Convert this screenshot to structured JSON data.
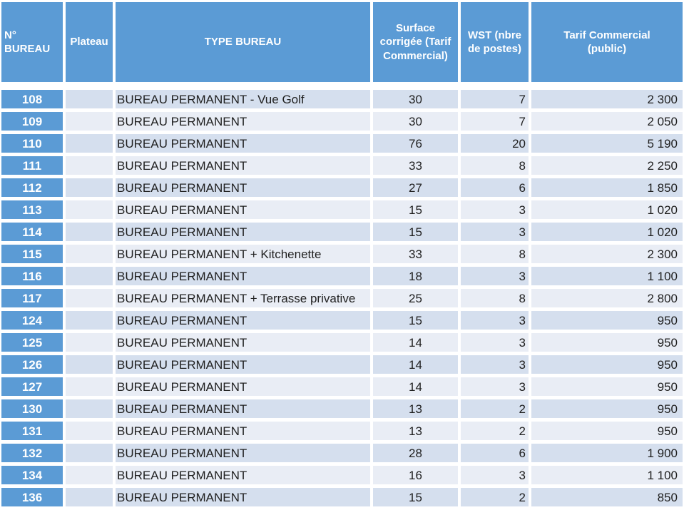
{
  "colors": {
    "blue": "#5B9BD5",
    "band_dark": "#D5DFEE",
    "band_light": "#E9EDF5",
    "text": "#1F1F1F"
  },
  "table": {
    "columns": [
      {
        "label": "N° BUREAU"
      },
      {
        "label": "Plateau"
      },
      {
        "label": "TYPE BUREAU"
      },
      {
        "label": "Surface corrigée (Tarif Commercial)"
      },
      {
        "label": "WST (nbre de postes)"
      },
      {
        "label": "Tarif Commercial (public)"
      }
    ],
    "rows": [
      {
        "num": "108",
        "plateau": "",
        "type": "BUREAU PERMANENT - Vue Golf",
        "surface": "30",
        "wst": "7",
        "tarif": "2 300"
      },
      {
        "num": "109",
        "plateau": "",
        "type": "BUREAU PERMANENT",
        "surface": "30",
        "wst": "7",
        "tarif": "2 050"
      },
      {
        "num": "110",
        "plateau": "",
        "type": "BUREAU PERMANENT",
        "surface": "76",
        "wst": "20",
        "tarif": "5 190"
      },
      {
        "num": "111",
        "plateau": "",
        "type": "BUREAU PERMANENT",
        "surface": "33",
        "wst": "8",
        "tarif": "2 250"
      },
      {
        "num": "112",
        "plateau": "",
        "type": "BUREAU PERMANENT",
        "surface": "27",
        "wst": "6",
        "tarif": "1 850"
      },
      {
        "num": "113",
        "plateau": "",
        "type": "BUREAU PERMANENT",
        "surface": "15",
        "wst": "3",
        "tarif": "1 020"
      },
      {
        "num": "114",
        "plateau": "",
        "type": "BUREAU PERMANENT",
        "surface": "15",
        "wst": "3",
        "tarif": "1 020"
      },
      {
        "num": "115",
        "plateau": "",
        "type": "BUREAU PERMANENT + Kitchenette",
        "surface": "33",
        "wst": "8",
        "tarif": "2 300"
      },
      {
        "num": "116",
        "plateau": "",
        "type": "BUREAU PERMANENT",
        "surface": "18",
        "wst": "3",
        "tarif": "1 100"
      },
      {
        "num": "117",
        "plateau": "",
        "type": "BUREAU PERMANENT + Terrasse privative",
        "surface": "25",
        "wst": "8",
        "tarif": "2 800"
      },
      {
        "num": "124",
        "plateau": "",
        "type": "BUREAU PERMANENT",
        "surface": "15",
        "wst": "3",
        "tarif": "950"
      },
      {
        "num": "125",
        "plateau": "",
        "type": "BUREAU PERMANENT",
        "surface": "14",
        "wst": "3",
        "tarif": "950"
      },
      {
        "num": "126",
        "plateau": "",
        "type": "BUREAU PERMANENT",
        "surface": "14",
        "wst": "3",
        "tarif": "950"
      },
      {
        "num": "127",
        "plateau": "",
        "type": "BUREAU PERMANENT",
        "surface": "14",
        "wst": "3",
        "tarif": "950"
      },
      {
        "num": "130",
        "plateau": "",
        "type": "BUREAU PERMANENT",
        "surface": "13",
        "wst": "2",
        "tarif": "950"
      },
      {
        "num": "131",
        "plateau": "",
        "type": "BUREAU PERMANENT",
        "surface": "13",
        "wst": "2",
        "tarif": "950"
      },
      {
        "num": "132",
        "plateau": "",
        "type": "BUREAU PERMANENT",
        "surface": "28",
        "wst": "6",
        "tarif": "1 900"
      },
      {
        "num": "134",
        "plateau": "",
        "type": "BUREAU PERMANENT",
        "surface": "16",
        "wst": "3",
        "tarif": "1 100"
      },
      {
        "num": "136",
        "plateau": "",
        "type": "BUREAU PERMANENT",
        "surface": "15",
        "wst": "2",
        "tarif": "850"
      }
    ]
  }
}
